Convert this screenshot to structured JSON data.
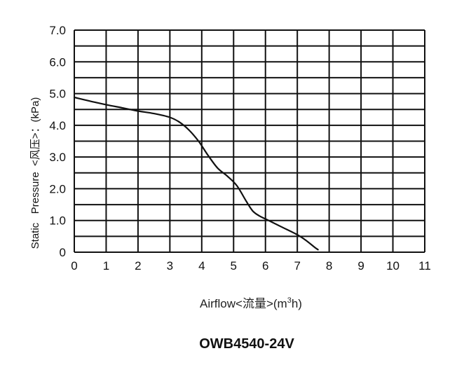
{
  "chart_data": {
    "type": "line",
    "title": "OWB4540-24V",
    "xlabel_main": "Airflow<流量>(m",
    "xlabel_sup": "3",
    "xlabel_end": "h)",
    "ylabel": "Static   Pressure  <风压>：(kPa)",
    "x_ticks": [
      "0",
      "1",
      "2",
      "3",
      "4",
      "5",
      "6",
      "7",
      "8",
      "9",
      "10",
      "11"
    ],
    "y_ticks": [
      "0",
      "1.0",
      "2.0",
      "3.0",
      "4.0",
      "5.0",
      "6.0",
      "7.0"
    ],
    "xlim": [
      0,
      11
    ],
    "ylim": [
      0,
      7
    ],
    "grid": true,
    "series": [
      {
        "x": [
          0,
          0.5,
          1.0,
          1.5,
          2.0,
          2.5,
          3.0,
          3.3,
          3.6,
          3.9,
          4.2,
          4.5,
          4.8,
          5.1,
          5.4,
          5.6,
          5.8,
          6.1,
          6.5,
          7.0,
          7.3,
          7.55,
          7.65
        ],
        "y": [
          4.88,
          4.76,
          4.65,
          4.55,
          4.45,
          4.37,
          4.25,
          4.1,
          3.85,
          3.5,
          3.05,
          2.65,
          2.4,
          2.1,
          1.6,
          1.3,
          1.15,
          1.0,
          0.8,
          0.55,
          0.35,
          0.15,
          0.08
        ],
        "color": "#111111"
      }
    ]
  }
}
